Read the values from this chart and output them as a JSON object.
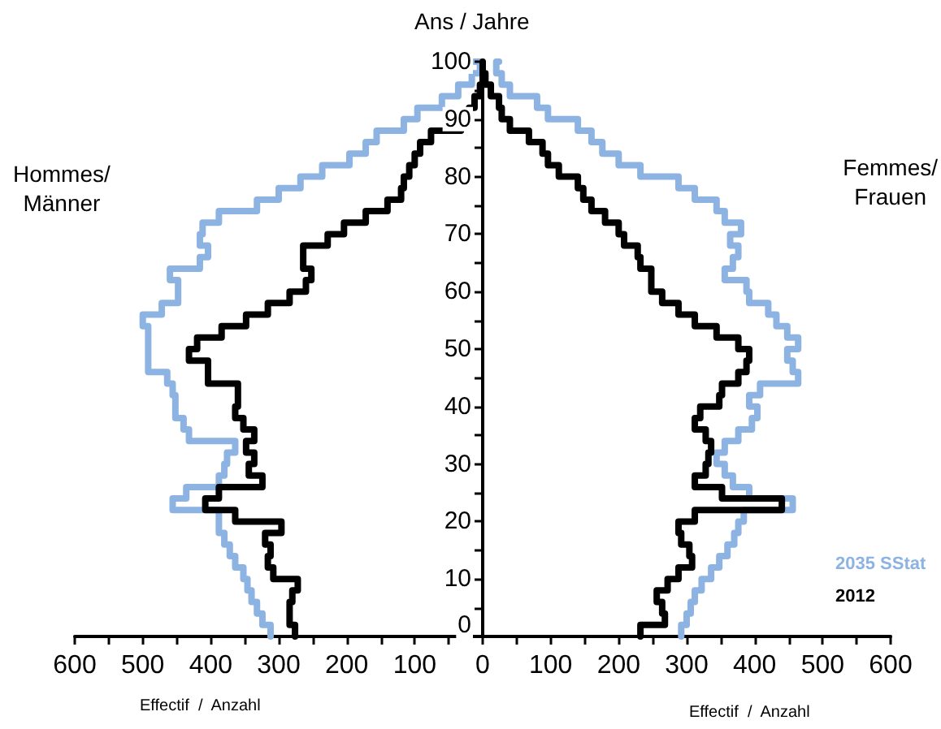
{
  "chart_data": {
    "type": "step",
    "ylabel": "Ans / Jahre",
    "xlabel": "Effectif  /  Anzahl",
    "annotations": [
      "Hommes/\nMänner",
      "Femmes/\nFrauen",
      "Effectif  /  Anzahl"
    ],
    "xlim": [
      -600,
      600
    ],
    "xticks": [
      {
        "value": -600,
        "label": "600"
      },
      {
        "value": -550,
        "label": null
      },
      {
        "value": -500,
        "label": "500"
      },
      {
        "value": -450,
        "label": null
      },
      {
        "value": -400,
        "label": "400"
      },
      {
        "value": -350,
        "label": null
      },
      {
        "value": -300,
        "label": "300"
      },
      {
        "value": -250,
        "label": null
      },
      {
        "value": -200,
        "label": "200"
      },
      {
        "value": -150,
        "label": null
      },
      {
        "value": -100,
        "label": "100"
      },
      {
        "value": -50,
        "label": null
      },
      0,
      {
        "value": 50,
        "label": null
      },
      100,
      {
        "value": 150,
        "label": null
      },
      200,
      {
        "value": 250,
        "label": null
      },
      300,
      {
        "value": 350,
        "label": null
      },
      400,
      {
        "value": 450,
        "label": null
      },
      500,
      {
        "value": 550,
        "label": null
      },
      600
    ],
    "ylim": [
      0,
      100
    ],
    "yticks": [
      0,
      {
        "value": 5,
        "label": null
      },
      10,
      {
        "value": 15,
        "label": null
      },
      20,
      {
        "value": 25,
        "label": null
      },
      30,
      {
        "value": 35,
        "label": null
      },
      40,
      {
        "value": 45,
        "label": null
      },
      50,
      {
        "value": 55,
        "label": null
      },
      60,
      {
        "value": 65,
        "label": null
      },
      70,
      {
        "value": 75,
        "label": null
      },
      80,
      {
        "value": 85,
        "label": null
      },
      90,
      {
        "value": 95,
        "label": null
      },
      100
    ],
    "grid": false,
    "legend": "bottom right",
    "marker": "none",
    "line_style": "solid",
    "series": [
      {
        "name": "2035 SStat",
        "color": "#8db3e2",
        "x": [
          -312,
          -324,
          -332,
          -340,
          -346,
          -352,
          -364,
          -372,
          -380,
          -388,
          -388,
          -456,
          -436,
          -388,
          -380,
          -376,
          -364,
          -432,
          -440,
          -452,
          -452,
          -456,
          -464,
          -492,
          -492,
          -492,
          -492,
          -500,
          -472,
          -448,
          -448,
          -460,
          -416,
          -404,
          -416,
          -412,
          -388,
          -332,
          -300,
          -268,
          -236,
          -196,
          -172,
          -156,
          -116,
          -96,
          -60,
          -36,
          -16,
          -4,
          -12,
          null,
          292,
          300,
          306,
          312,
          322,
          336,
          348,
          360,
          370,
          376,
          384,
          456,
          392,
          368,
          356,
          344,
          356,
          376,
          396,
          404,
          392,
          408,
          464,
          456,
          448,
          464,
          448,
          432,
          420,
          392,
          388,
          356,
          368,
          376,
          364,
          380,
          356,
          344,
          312,
          288,
          232,
          200,
          176,
          160,
          140,
          96,
          80,
          40,
          28,
          20,
          24
        ],
        "values": [
          0,
          2,
          4,
          6,
          8,
          10,
          12,
          14,
          16,
          18,
          20,
          22,
          24,
          26,
          28,
          30,
          32,
          34,
          36,
          38,
          40,
          42,
          44,
          46,
          48,
          50,
          52,
          54,
          56,
          58,
          60,
          62,
          64,
          66,
          68,
          70,
          72,
          74,
          76,
          78,
          80,
          82,
          84,
          86,
          88,
          90,
          92,
          94,
          96,
          98,
          100,
          null,
          0,
          2,
          4,
          6,
          8,
          10,
          12,
          14,
          16,
          18,
          20,
          22,
          24,
          26,
          28,
          30,
          32,
          34,
          36,
          38,
          40,
          42,
          44,
          46,
          48,
          50,
          52,
          54,
          56,
          58,
          60,
          62,
          64,
          66,
          68,
          70,
          72,
          74,
          76,
          78,
          80,
          82,
          84,
          86,
          88,
          90,
          92,
          94,
          96,
          98,
          100
        ]
      },
      {
        "name": "2012",
        "color": "#000000",
        "x": [
          -276,
          -284,
          -284,
          -280,
          -272,
          -308,
          -316,
          -312,
          -320,
          -296,
          -364,
          -408,
          -388,
          -324,
          -344,
          -336,
          -348,
          -336,
          -352,
          -364,
          -360,
          -360,
          -404,
          -404,
          -432,
          -420,
          -384,
          -348,
          -316,
          -284,
          -260,
          -252,
          -264,
          -264,
          -228,
          -204,
          -172,
          -140,
          -120,
          -116,
          -108,
          -100,
          -92,
          -76,
          -32,
          -20,
          -12,
          -4,
          0,
          0,
          0,
          null,
          232,
          268,
          264,
          256,
          272,
          288,
          308,
          304,
          292,
          288,
          312,
          440,
          352,
          312,
          328,
          332,
          336,
          328,
          312,
          320,
          348,
          352,
          376,
          388,
          392,
          376,
          344,
          312,
          288,
          264,
          248,
          248,
          232,
          228,
          208,
          200,
          180,
          160,
          148,
          140,
          112,
          96,
          88,
          68,
          40,
          28,
          24,
          12,
          4,
          0,
          0
        ],
        "values": [
          0,
          2,
          4,
          6,
          8,
          10,
          12,
          14,
          16,
          18,
          20,
          22,
          24,
          26,
          28,
          30,
          32,
          34,
          36,
          38,
          40,
          42,
          44,
          46,
          48,
          50,
          52,
          54,
          56,
          58,
          60,
          62,
          64,
          66,
          68,
          70,
          72,
          74,
          76,
          78,
          80,
          82,
          84,
          86,
          88,
          90,
          92,
          94,
          96,
          98,
          100,
          null,
          0,
          2,
          4,
          6,
          8,
          10,
          12,
          14,
          16,
          18,
          20,
          22,
          24,
          26,
          28,
          30,
          32,
          34,
          36,
          38,
          40,
          42,
          44,
          46,
          48,
          50,
          52,
          54,
          56,
          58,
          60,
          62,
          64,
          66,
          68,
          70,
          72,
          74,
          76,
          78,
          80,
          82,
          84,
          86,
          88,
          90,
          92,
          94,
          96,
          98,
          100
        ]
      }
    ]
  }
}
